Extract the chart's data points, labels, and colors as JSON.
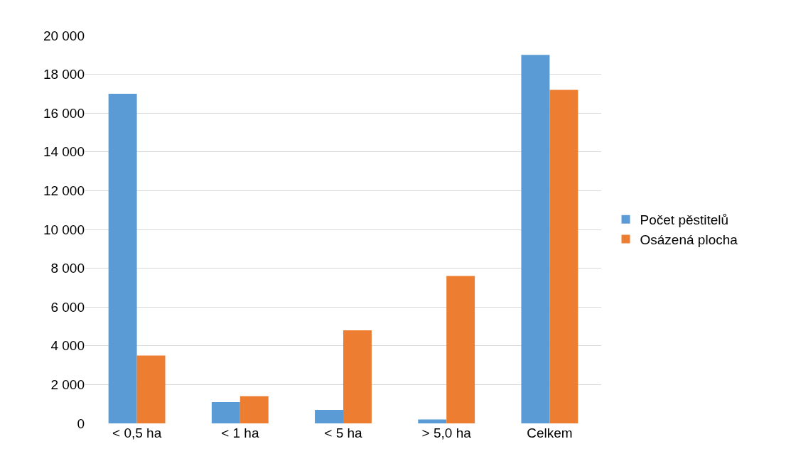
{
  "chart_data": {
    "type": "bar",
    "categories": [
      "< 0,5 ha",
      "< 1 ha",
      "< 5 ha",
      "> 5,0 ha",
      "Celkem"
    ],
    "series": [
      {
        "name": "Počet pěstitelů",
        "color": "#5b9bd5",
        "values": [
          17000,
          1100,
          700,
          200,
          19000
        ]
      },
      {
        "name": "Osázená plocha",
        "color": "#ed7d31",
        "values": [
          3500,
          1400,
          4800,
          7600,
          17200
        ]
      }
    ],
    "ylim": [
      0,
      20000
    ],
    "yticks": [
      0,
      {
        "value": 2000,
        "label": "2 000"
      },
      {
        "value": 4000,
        "label": "4 000"
      },
      {
        "value": 6000,
        "label": "6 000"
      },
      {
        "value": 8000,
        "label": "8 000"
      },
      {
        "value": 10000,
        "label": "10 000"
      },
      {
        "value": 12000,
        "label": "12 000"
      },
      {
        "value": 14000,
        "label": "14 000"
      },
      {
        "value": 16000,
        "label": "16 000"
      },
      {
        "value": 18000,
        "label": "18 000"
      },
      {
        "value": 20000,
        "label": "20 000"
      }
    ],
    "grid": "y",
    "legend": "right"
  }
}
